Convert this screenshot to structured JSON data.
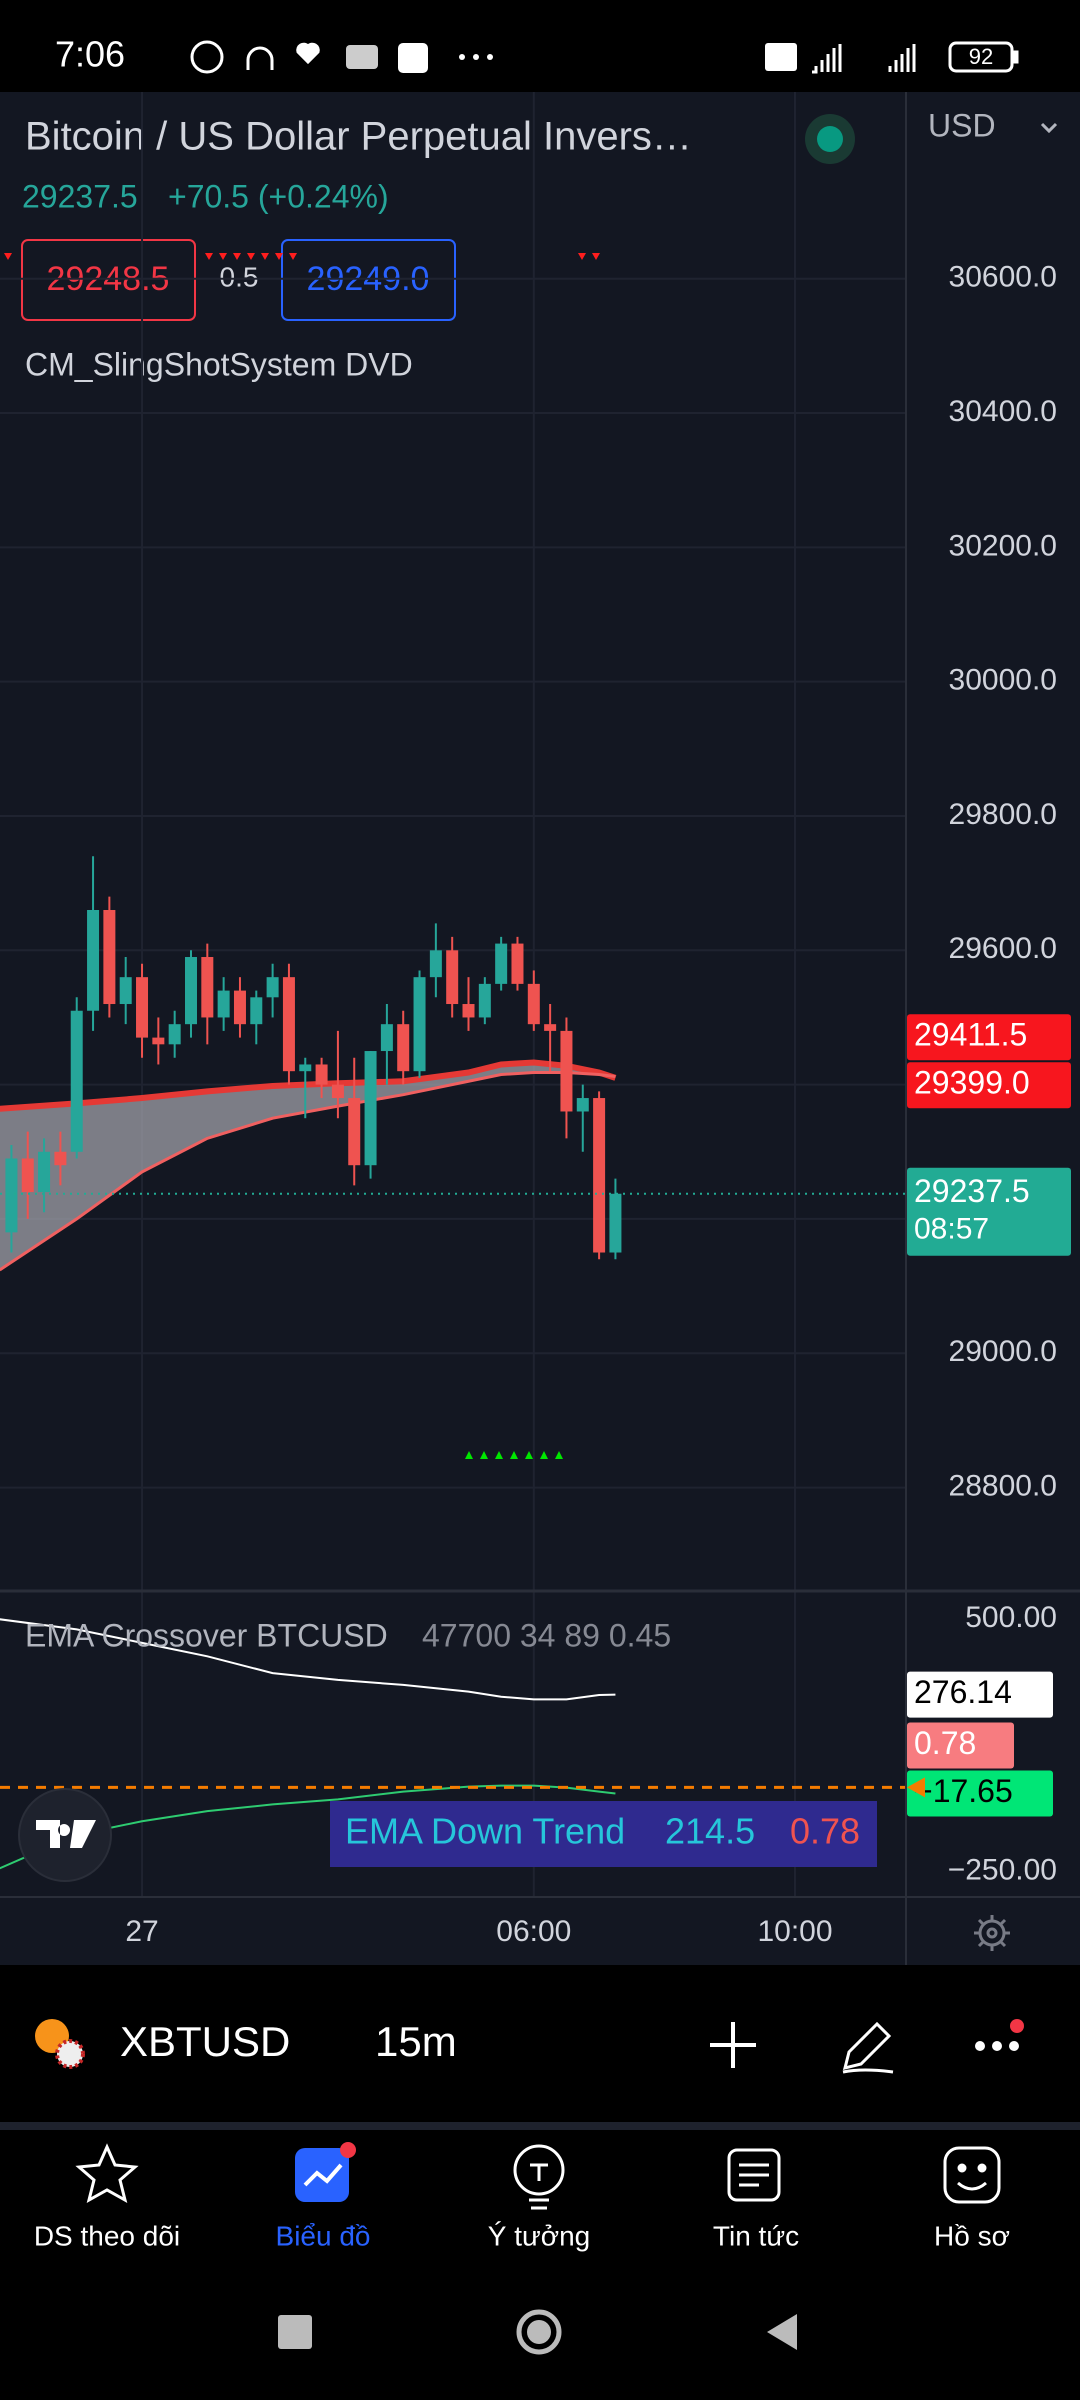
{
  "status_bar": {
    "time": "7:06",
    "battery": "92"
  },
  "header": {
    "title": "Bitcoin / US Dollar Perpetual Invers…",
    "currency": "USD",
    "last_price": "29237.5",
    "change": "+70.5 (+0.24%)",
    "bid": "29248.5",
    "spread": "0.5",
    "ask": "29249.0",
    "indicator": "CM_SlingShotSystem DVD"
  },
  "chart_data": [
    {
      "type": "candlestick",
      "x": [
        -2,
        -1.75,
        -1.5,
        -1.25,
        -1,
        -0.75,
        -0.5,
        -0.25,
        0,
        0.25,
        0.5,
        0.75,
        1,
        1.25,
        1.5,
        1.75,
        2,
        2.25,
        2.5,
        2.75,
        3,
        3.25,
        3.5,
        3.75,
        4,
        4.25,
        4.5,
        4.75,
        5,
        5.25,
        5.5,
        5.75,
        6,
        6.25,
        6.5,
        6.75,
        7,
        7.25
      ],
      "open": [
        29180,
        29290,
        29240,
        29300,
        29300,
        29510,
        29660,
        29520,
        29560,
        29470,
        29460,
        29490,
        29590,
        29500,
        29540,
        29490,
        29530,
        29560,
        29420,
        29430,
        29400,
        29380,
        29280,
        29450,
        29490,
        29420,
        29560,
        29600,
        29520,
        29500,
        29550,
        29610,
        29550,
        29490,
        29480,
        29360,
        29380,
        29150
      ],
      "high": [
        29310,
        29330,
        29320,
        29330,
        29530,
        29740,
        29680,
        29590,
        29580,
        29500,
        29510,
        29600,
        29610,
        29560,
        29560,
        29540,
        29580,
        29580,
        29440,
        29440,
        29480,
        29440,
        29450,
        29520,
        29510,
        29570,
        29640,
        29620,
        29560,
        29560,
        29620,
        29620,
        29570,
        29520,
        29500,
        29400,
        29390,
        29260
      ],
      "low": [
        29150,
        29200,
        29210,
        29250,
        29290,
        29480,
        29500,
        29490,
        29440,
        29430,
        29440,
        29470,
        29460,
        29480,
        29470,
        29460,
        29500,
        29400,
        29350,
        29380,
        29350,
        29250,
        29260,
        29400,
        29400,
        29410,
        29530,
        29500,
        29480,
        29490,
        29540,
        29540,
        29480,
        29420,
        29320,
        29300,
        29140,
        29140
      ],
      "close": [
        29290,
        29240,
        29300,
        29280,
        29510,
        29660,
        29520,
        29560,
        29470,
        29460,
        29490,
        29590,
        29500,
        29540,
        29490,
        29530,
        29560,
        29420,
        29430,
        29400,
        29380,
        29280,
        29450,
        29490,
        29420,
        29560,
        29600,
        29520,
        29500,
        29550,
        29610,
        29550,
        29490,
        29480,
        29360,
        29380,
        29150,
        29237.5
      ],
      "up_color": "#26a69a",
      "down_color": "#ef5350",
      "fill_color": "#a0a0a8",
      "series": [
        {
          "color": "#e53935",
          "x": [
            -2.18,
            -1,
            0,
            1,
            2,
            3,
            4,
            5,
            5.5,
            6,
            6.5,
            7,
            7.25
          ],
          "values": [
            29364,
            29372,
            29380,
            29390,
            29398,
            29402,
            29405,
            29418,
            29430,
            29433,
            29428,
            29418,
            29410
          ]
        },
        {
          "color": "#f06060",
          "x": [
            -2.18,
            -1,
            0,
            1,
            2,
            3,
            4,
            5,
            5.5,
            6,
            6.5,
            7,
            7.25
          ],
          "values": [
            29124,
            29200,
            29270,
            29320,
            29350,
            29368,
            29385,
            29405,
            29415,
            29418,
            29418,
            29415,
            29412
          ]
        }
      ],
      "xlim": [
        -2.175,
        11.7
      ],
      "xticks": [
        {
          "value": 0,
          "label": "27"
        },
        {
          "value": 6,
          "label": "06:00"
        },
        {
          "value": 10,
          "label": "10:00"
        }
      ],
      "ylim": [
        28646,
        30878
      ],
      "yticks": [
        {
          "value": 28800,
          "label": "28800.0"
        },
        {
          "value": 29000,
          "label": "29000.0"
        },
        {
          "value": 29200,
          "label": "29200.0"
        },
        {
          "value": 29400,
          "label": "29400.0"
        },
        {
          "value": 29600,
          "label": "29600.0"
        },
        {
          "value": 29800,
          "label": "29800.0"
        },
        {
          "value": 30000,
          "label": "30000.0"
        },
        {
          "value": 30200,
          "label": "30200.0"
        },
        {
          "value": 30400,
          "label": "30400.0"
        },
        {
          "value": 30600,
          "label": "30600.0"
        }
      ],
      "grid": true,
      "price_labels": [
        {
          "value": 29411.5,
          "label": "29411.5",
          "color": "#f7161e"
        },
        {
          "value": 29399,
          "label": "29399.0",
          "color": "#f7161e"
        },
        {
          "value": 29237.5,
          "label": "29237.5",
          "color": "#22ab94"
        }
      ],
      "countdown": "08:57"
    },
    {
      "type": "line",
      "title": "EMA Crossover BTCUSD",
      "params": "47700 34 89 0.45",
      "x": [
        -2.18,
        -1,
        0,
        1,
        2,
        3,
        4,
        5,
        5.5,
        6,
        6.5,
        7,
        7.25
      ],
      "series": [
        {
          "color": "#ffffff",
          "values": [
            500,
            470,
            430,
            390,
            340,
            320,
            305,
            285,
            270,
            262,
            262,
            275,
            276.14
          ]
        },
        {
          "color": "#2ecc71",
          "values": [
            -240,
            -140,
            -100,
            -70,
            -50,
            -35,
            -12,
            3,
            6,
            6,
            0,
            -12,
            -17.65
          ]
        }
      ],
      "xlim": [
        -2.175,
        11.7
      ],
      "ylim": [
        -325,
        584
      ],
      "yticks": [
        {
          "value": 500,
          "label": "500.00"
        },
        {
          "value": -250,
          "label": "−250.00"
        }
      ],
      "price_labels": [
        {
          "value": 276.14,
          "label": "276.14",
          "color": "#ffffff"
        },
        {
          "value": 0.78,
          "label": "0.78",
          "color": "#f77c80"
        },
        {
          "value": -17.65,
          "label": "−17.65",
          "color": "#00e676"
        }
      ],
      "level_color": "#f57c00",
      "trend_banner": {
        "label": "EMA Down Trend",
        "value": "214.5",
        "ratio": "0.78"
      }
    }
  ],
  "toolbar": {
    "symbol": "XBTUSD",
    "interval": "15m"
  },
  "nav": {
    "items": [
      "DS theo dõi",
      "Biểu đồ",
      "Ý tưởng",
      "Tin tức",
      "Hồ sơ"
    ],
    "active": 1
  }
}
